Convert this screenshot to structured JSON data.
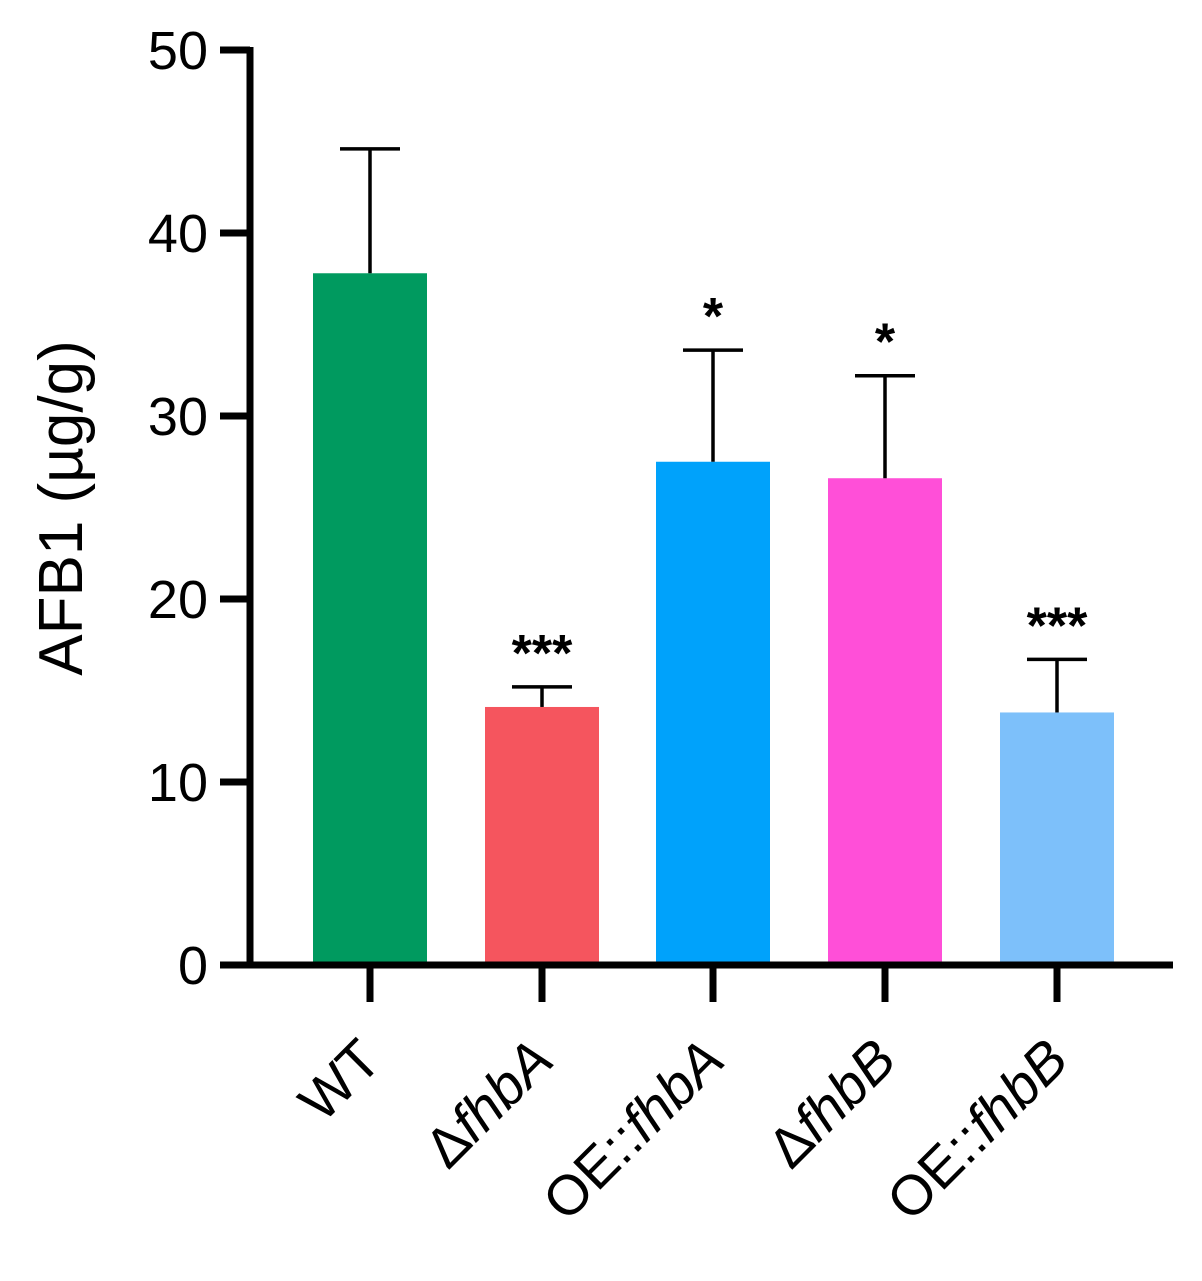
{
  "chart_data": {
    "type": "bar",
    "ylabel": "AFB1 (µg/g)",
    "ylim": [
      0,
      50
    ],
    "yticks": [
      0,
      10,
      20,
      30,
      40,
      50
    ],
    "grid": false,
    "categories": [
      {
        "prefix": "",
        "italic": "",
        "suffix": "WT"
      },
      {
        "prefix": "Δ",
        "italic": "fhbA",
        "suffix": ""
      },
      {
        "prefix": "OE::",
        "italic": "fhbA",
        "suffix": ""
      },
      {
        "prefix": "Δ",
        "italic": "fhbB",
        "suffix": ""
      },
      {
        "prefix": "OE::",
        "italic": "fhbB",
        "suffix": ""
      }
    ],
    "values": [
      37.8,
      14.1,
      27.5,
      26.6,
      13.8
    ],
    "errors": [
      6.8,
      1.1,
      6.1,
      5.6,
      2.9
    ],
    "significance": [
      "",
      "***",
      "*",
      "*",
      "***"
    ],
    "colors": [
      "#009A5F",
      "#F5555E",
      "#00A2FB",
      "#FF4FD8",
      "#7DC0FA"
    ]
  }
}
